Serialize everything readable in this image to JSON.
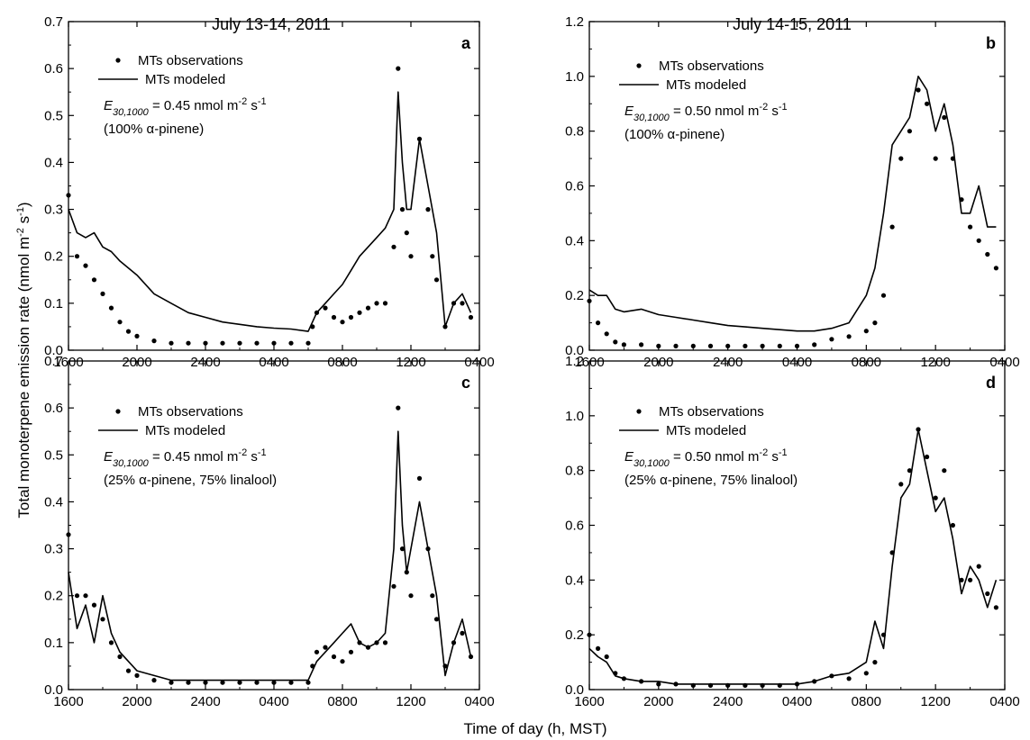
{
  "figure": {
    "column_titles": [
      "July 13-14, 2011",
      "July 14-15, 2011"
    ],
    "shared_ylabel": "Total monoterpene emission rate (nmol m-2 s-1)",
    "shared_xlabel": "Time of day (h, MST)"
  },
  "chart_data": [
    {
      "type": "line",
      "panel": "a",
      "title": "July 13-14, 2011",
      "xlabel": "Time of day (h, MST)",
      "ylabel": "Total monoterpene emission rate (nmol m-2 s-1)",
      "x_ticks": [
        "1600",
        "2000",
        "2400",
        "0400",
        "0800",
        "1200",
        "0400"
      ],
      "xlim": [
        16,
        40
      ],
      "ylim": [
        0,
        0.7
      ],
      "y_ticks": [
        "0.0",
        "0.1",
        "0.2",
        "0.3",
        "0.4",
        "0.5",
        "0.6",
        "0.7"
      ],
      "grid": false,
      "legend": {
        "observations": "MTs observations",
        "modeled": "MTs modeled",
        "equation_symbol": "E",
        "equation_subscript": "30,1000",
        "equation_text": " = 0.45 nmol m",
        "equation_sup1": "-2",
        "equation_mid": " s",
        "equation_sup2": "-1",
        "composition": "(100% α-pinene)"
      },
      "series": [
        {
          "name": "MTs observations",
          "style": "scatter",
          "x": [
            16.0,
            16.5,
            17.0,
            17.5,
            18.0,
            18.5,
            19.0,
            19.5,
            20.0,
            21.0,
            22.0,
            23.0,
            24.0,
            25.0,
            26.0,
            27.0,
            28.0,
            29.0,
            30.0,
            30.25,
            30.5,
            31.0,
            31.5,
            32.0,
            32.5,
            33.0,
            33.5,
            34.0,
            34.5,
            35.0,
            35.25,
            35.5,
            35.75,
            36.0,
            36.5,
            37.0,
            37.25,
            37.5,
            38.0,
            38.5,
            39.0,
            39.5
          ],
          "y": [
            0.33,
            0.2,
            0.18,
            0.15,
            0.12,
            0.09,
            0.06,
            0.04,
            0.03,
            0.02,
            0.015,
            0.015,
            0.015,
            0.015,
            0.015,
            0.015,
            0.015,
            0.015,
            0.015,
            0.05,
            0.08,
            0.09,
            0.07,
            0.06,
            0.07,
            0.08,
            0.09,
            0.1,
            0.1,
            0.22,
            0.6,
            0.3,
            0.25,
            0.2,
            0.45,
            0.3,
            0.2,
            0.15,
            0.05,
            0.1,
            0.1,
            0.07
          ]
        },
        {
          "name": "MTs modeled",
          "style": "line",
          "x": [
            16.0,
            16.5,
            17.0,
            17.5,
            18.0,
            18.5,
            19.0,
            20.0,
            21.0,
            22.0,
            23.0,
            24.0,
            25.0,
            26.0,
            27.0,
            28.0,
            29.0,
            30.0,
            30.5,
            31.0,
            31.5,
            32.0,
            32.5,
            33.0,
            33.5,
            34.0,
            34.5,
            35.0,
            35.25,
            35.5,
            35.75,
            36.0,
            36.5,
            37.0,
            37.5,
            38.0,
            38.5,
            39.0,
            39.5
          ],
          "y": [
            0.3,
            0.25,
            0.24,
            0.25,
            0.22,
            0.21,
            0.19,
            0.16,
            0.12,
            0.1,
            0.08,
            0.07,
            0.06,
            0.055,
            0.05,
            0.047,
            0.045,
            0.04,
            0.08,
            0.1,
            0.12,
            0.14,
            0.17,
            0.2,
            0.22,
            0.24,
            0.26,
            0.3,
            0.55,
            0.4,
            0.3,
            0.3,
            0.45,
            0.35,
            0.25,
            0.05,
            0.1,
            0.12,
            0.08
          ]
        }
      ]
    },
    {
      "type": "line",
      "panel": "b",
      "title": "July 14-15, 2011",
      "xlabel": "Time of day (h, MST)",
      "ylabel": "Total monoterpene emission rate (nmol m-2 s-1)",
      "x_ticks": [
        "1600",
        "2000",
        "2400",
        "0400",
        "0800",
        "1200",
        "0400"
      ],
      "xlim": [
        16,
        40
      ],
      "ylim": [
        0,
        1.2
      ],
      "y_ticks": [
        "0.0",
        "0.2",
        "0.4",
        "0.6",
        "0.8",
        "1.0",
        "1.2"
      ],
      "grid": false,
      "legend": {
        "observations": "MTs observations",
        "modeled": "MTs modeled",
        "equation_symbol": "E",
        "equation_subscript": "30,1000",
        "equation_text": " = 0.50 nmol m",
        "equation_sup1": "-2",
        "equation_mid": " s",
        "equation_sup2": "-1",
        "composition": "(100% α-pinene)"
      },
      "series": [
        {
          "name": "MTs observations",
          "style": "scatter",
          "x": [
            16.0,
            16.5,
            17.0,
            17.5,
            18.0,
            19.0,
            20.0,
            21.0,
            22.0,
            23.0,
            24.0,
            25.0,
            26.0,
            27.0,
            28.0,
            29.0,
            30.0,
            31.0,
            32.0,
            32.5,
            33.0,
            33.5,
            34.0,
            34.5,
            35.0,
            35.5,
            36.0,
            36.5,
            37.0,
            37.5,
            38.0,
            38.5,
            39.0,
            39.5
          ],
          "y": [
            0.18,
            0.1,
            0.06,
            0.03,
            0.02,
            0.02,
            0.015,
            0.015,
            0.015,
            0.015,
            0.015,
            0.015,
            0.015,
            0.015,
            0.015,
            0.02,
            0.04,
            0.05,
            0.07,
            0.1,
            0.2,
            0.45,
            0.7,
            0.8,
            0.95,
            0.9,
            0.7,
            0.85,
            0.7,
            0.55,
            0.45,
            0.4,
            0.35,
            0.3
          ]
        },
        {
          "name": "MTs modeled",
          "style": "line",
          "x": [
            16.0,
            16.5,
            17.0,
            17.5,
            18.0,
            19.0,
            20.0,
            21.0,
            22.0,
            23.0,
            24.0,
            25.0,
            26.0,
            27.0,
            28.0,
            29.0,
            30.0,
            31.0,
            32.0,
            32.5,
            33.0,
            33.5,
            34.0,
            34.5,
            35.0,
            35.5,
            36.0,
            36.5,
            37.0,
            37.5,
            38.0,
            38.5,
            39.0,
            39.5
          ],
          "y": [
            0.22,
            0.2,
            0.2,
            0.15,
            0.14,
            0.15,
            0.13,
            0.12,
            0.11,
            0.1,
            0.09,
            0.085,
            0.08,
            0.075,
            0.07,
            0.07,
            0.08,
            0.1,
            0.2,
            0.3,
            0.5,
            0.75,
            0.8,
            0.85,
            1.0,
            0.95,
            0.8,
            0.9,
            0.75,
            0.5,
            0.5,
            0.6,
            0.45,
            0.45
          ]
        }
      ]
    },
    {
      "type": "line",
      "panel": "c",
      "title": "July 13-14, 2011",
      "xlabel": "Time of day (h, MST)",
      "ylabel": "Total monoterpene emission rate (nmol m-2 s-1)",
      "x_ticks": [
        "1600",
        "2000",
        "2400",
        "0400",
        "0800",
        "1200",
        "0400"
      ],
      "xlim": [
        16,
        40
      ],
      "ylim": [
        0,
        0.7
      ],
      "y_ticks": [
        "0.0",
        "0.1",
        "0.2",
        "0.3",
        "0.4",
        "0.5",
        "0.6",
        "0.7"
      ],
      "grid": false,
      "legend": {
        "observations": "MTs observations",
        "modeled": "MTs modeled",
        "equation_symbol": "E",
        "equation_subscript": "30,1000",
        "equation_text": " = 0.45 nmol m",
        "equation_sup1": "-2",
        "equation_mid": " s",
        "equation_sup2": "-1",
        "composition": "(25% α-pinene, 75% linalool)"
      },
      "series": [
        {
          "name": "MTs observations",
          "style": "scatter",
          "x": [
            16.0,
            16.5,
            17.0,
            17.5,
            18.0,
            18.5,
            19.0,
            19.5,
            20.0,
            21.0,
            22.0,
            23.0,
            24.0,
            25.0,
            26.0,
            27.0,
            28.0,
            29.0,
            30.0,
            30.25,
            30.5,
            31.0,
            31.5,
            32.0,
            32.5,
            33.0,
            33.5,
            34.0,
            34.5,
            35.0,
            35.25,
            35.5,
            35.75,
            36.0,
            36.5,
            37.0,
            37.25,
            37.5,
            38.0,
            38.5,
            39.0,
            39.5
          ],
          "y": [
            0.33,
            0.2,
            0.2,
            0.18,
            0.15,
            0.1,
            0.07,
            0.04,
            0.03,
            0.02,
            0.015,
            0.015,
            0.015,
            0.015,
            0.015,
            0.015,
            0.015,
            0.015,
            0.015,
            0.05,
            0.08,
            0.09,
            0.07,
            0.06,
            0.08,
            0.1,
            0.09,
            0.1,
            0.1,
            0.22,
            0.6,
            0.3,
            0.25,
            0.2,
            0.45,
            0.3,
            0.2,
            0.15,
            0.05,
            0.1,
            0.12,
            0.07
          ]
        },
        {
          "name": "MTs modeled",
          "style": "line",
          "x": [
            16.0,
            16.5,
            17.0,
            17.5,
            18.0,
            18.5,
            19.0,
            20.0,
            21.0,
            22.0,
            23.0,
            24.0,
            25.0,
            26.0,
            27.0,
            28.0,
            29.0,
            30.0,
            30.5,
            31.0,
            31.5,
            32.0,
            32.5,
            33.0,
            33.5,
            34.0,
            34.5,
            35.0,
            35.25,
            35.5,
            35.75,
            36.0,
            36.5,
            37.0,
            37.5,
            38.0,
            38.5,
            39.0,
            39.5
          ],
          "y": [
            0.25,
            0.13,
            0.18,
            0.1,
            0.2,
            0.12,
            0.08,
            0.04,
            0.03,
            0.02,
            0.02,
            0.02,
            0.02,
            0.02,
            0.02,
            0.02,
            0.02,
            0.02,
            0.06,
            0.08,
            0.1,
            0.12,
            0.14,
            0.1,
            0.09,
            0.1,
            0.12,
            0.3,
            0.55,
            0.35,
            0.25,
            0.3,
            0.4,
            0.3,
            0.2,
            0.03,
            0.1,
            0.15,
            0.07
          ]
        }
      ]
    },
    {
      "type": "line",
      "panel": "d",
      "title": "July 14-15, 2011",
      "xlabel": "Time of day (h, MST)",
      "ylabel": "Total monoterpene emission rate (nmol m-2 s-1)",
      "x_ticks": [
        "1600",
        "2000",
        "2400",
        "0400",
        "0800",
        "1200",
        "0400"
      ],
      "xlim": [
        16,
        40
      ],
      "ylim": [
        0,
        1.2
      ],
      "y_ticks": [
        "0.0",
        "0.2",
        "0.4",
        "0.6",
        "0.8",
        "1.0",
        "1.2"
      ],
      "grid": false,
      "legend": {
        "observations": "MTs observations",
        "modeled": "MTs modeled",
        "equation_symbol": "E",
        "equation_subscript": "30,1000",
        "equation_text": " = 0.50 nmol m",
        "equation_sup1": "-2",
        "equation_mid": " s",
        "equation_sup2": "-1",
        "composition": "(25% α-pinene, 75% linalool)"
      },
      "series": [
        {
          "name": "MTs observations",
          "style": "scatter",
          "x": [
            16.0,
            16.5,
            17.0,
            17.5,
            18.0,
            19.0,
            20.0,
            21.0,
            22.0,
            23.0,
            24.0,
            25.0,
            26.0,
            27.0,
            28.0,
            29.0,
            30.0,
            31.0,
            32.0,
            32.5,
            33.0,
            33.5,
            34.0,
            34.5,
            35.0,
            35.5,
            36.0,
            36.5,
            37.0,
            37.5,
            38.0,
            38.5,
            39.0,
            39.5
          ],
          "y": [
            0.2,
            0.15,
            0.12,
            0.06,
            0.04,
            0.03,
            0.02,
            0.02,
            0.015,
            0.015,
            0.015,
            0.015,
            0.015,
            0.015,
            0.02,
            0.03,
            0.05,
            0.04,
            0.06,
            0.1,
            0.2,
            0.5,
            0.75,
            0.8,
            0.95,
            0.85,
            0.7,
            0.8,
            0.6,
            0.4,
            0.4,
            0.45,
            0.35,
            0.3
          ]
        },
        {
          "name": "MTs modeled",
          "style": "line",
          "x": [
            16.0,
            16.5,
            17.0,
            17.5,
            18.0,
            19.0,
            20.0,
            21.0,
            22.0,
            23.0,
            24.0,
            25.0,
            26.0,
            27.0,
            28.0,
            29.0,
            30.0,
            31.0,
            32.0,
            32.5,
            33.0,
            33.5,
            34.0,
            34.5,
            35.0,
            35.5,
            36.0,
            36.5,
            37.0,
            37.5,
            38.0,
            38.5,
            39.0,
            39.5
          ],
          "y": [
            0.15,
            0.12,
            0.1,
            0.05,
            0.04,
            0.03,
            0.03,
            0.02,
            0.02,
            0.02,
            0.02,
            0.02,
            0.02,
            0.02,
            0.02,
            0.03,
            0.05,
            0.06,
            0.1,
            0.25,
            0.15,
            0.45,
            0.7,
            0.75,
            0.95,
            0.8,
            0.65,
            0.7,
            0.55,
            0.35,
            0.45,
            0.4,
            0.3,
            0.4
          ]
        }
      ]
    }
  ]
}
